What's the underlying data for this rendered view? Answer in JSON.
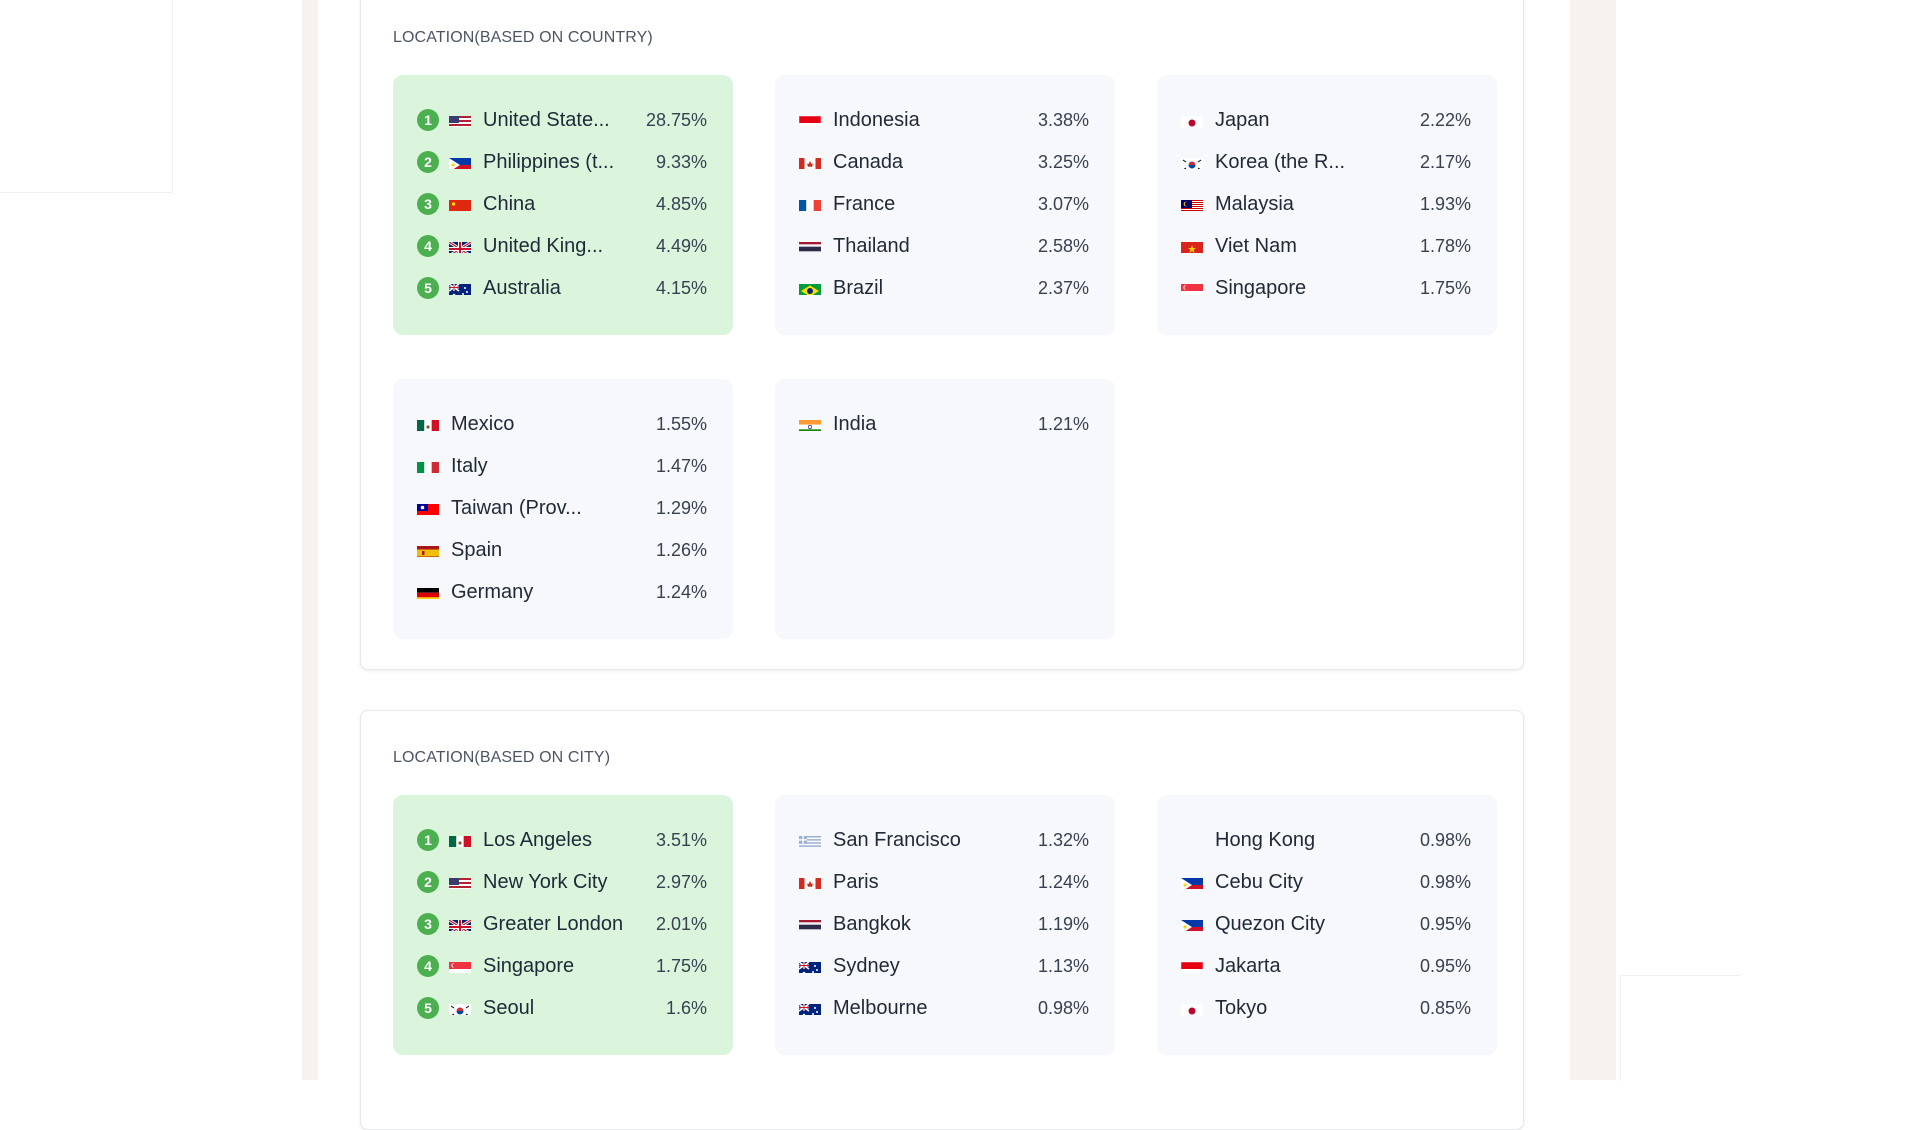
{
  "country_section": {
    "title": "LOCATION(BASED ON COUNTRY)",
    "groups": [
      {
        "highlight": true,
        "items": [
          {
            "rank": "1",
            "flag": "us-flag",
            "name": "United State...",
            "pct": "28.75%"
          },
          {
            "rank": "2",
            "flag": "ph-flag",
            "name": "Philippines (t...",
            "pct": "9.33%"
          },
          {
            "rank": "3",
            "flag": "cn-flag",
            "name": "China",
            "pct": "4.85%"
          },
          {
            "rank": "4",
            "flag": "gb-flag",
            "name": "United King...",
            "pct": "4.49%"
          },
          {
            "rank": "5",
            "flag": "au-flag",
            "name": "Australia",
            "pct": "4.15%"
          }
        ]
      },
      {
        "highlight": false,
        "items": [
          {
            "flag": "id-flag",
            "name": "Indonesia",
            "pct": "3.38%"
          },
          {
            "flag": "ca-flag",
            "name": "Canada",
            "pct": "3.25%"
          },
          {
            "flag": "fr-flag",
            "name": "France",
            "pct": "3.07%"
          },
          {
            "flag": "th-flag",
            "name": "Thailand",
            "pct": "2.58%"
          },
          {
            "flag": "br-flag",
            "name": "Brazil",
            "pct": "2.37%"
          }
        ]
      },
      {
        "highlight": false,
        "items": [
          {
            "flag": "jp-flag",
            "name": "Japan",
            "pct": "2.22%"
          },
          {
            "flag": "kr-flag",
            "name": "Korea (the R...",
            "pct": "2.17%"
          },
          {
            "flag": "my-flag",
            "name": "Malaysia",
            "pct": "1.93%"
          },
          {
            "flag": "vn-flag",
            "name": "Viet Nam",
            "pct": "1.78%"
          },
          {
            "flag": "sg-flag",
            "name": "Singapore",
            "pct": "1.75%"
          }
        ]
      },
      {
        "highlight": false,
        "items": [
          {
            "flag": "mx-flag",
            "name": "Mexico",
            "pct": "1.55%"
          },
          {
            "flag": "it-flag",
            "name": "Italy",
            "pct": "1.47%"
          },
          {
            "flag": "tw-flag",
            "name": "Taiwan (Prov...",
            "pct": "1.29%"
          },
          {
            "flag": "es-flag",
            "name": "Spain",
            "pct": "1.26%"
          },
          {
            "flag": "de-flag",
            "name": "Germany",
            "pct": "1.24%"
          }
        ]
      },
      {
        "highlight": false,
        "items": [
          {
            "flag": "in-flag",
            "name": "India",
            "pct": "1.21%"
          }
        ]
      }
    ]
  },
  "city_section": {
    "title": "LOCATION(BASED ON CITY)",
    "groups": [
      {
        "highlight": true,
        "items": [
          {
            "rank": "1",
            "flag": "mx-flag",
            "name": "Los Angeles",
            "pct": "3.51%"
          },
          {
            "rank": "2",
            "flag": "us-flag",
            "name": "New York City",
            "pct": "2.97%"
          },
          {
            "rank": "3",
            "flag": "gb-flag",
            "name": "Greater London",
            "pct": "2.01%"
          },
          {
            "rank": "4",
            "flag": "sg-flag",
            "name": "Singapore",
            "pct": "1.75%"
          },
          {
            "rank": "5",
            "flag": "kr-flag",
            "name": "Seoul",
            "pct": "1.6%"
          }
        ]
      },
      {
        "highlight": false,
        "items": [
          {
            "flag": "gr-flag",
            "name": "San Francisco",
            "pct": "1.32%"
          },
          {
            "flag": "ca-flag",
            "name": "Paris",
            "pct": "1.24%"
          },
          {
            "flag": "th-flag",
            "name": "Bangkok",
            "pct": "1.19%"
          },
          {
            "flag": "au-flag",
            "name": "Sydney",
            "pct": "1.13%"
          },
          {
            "flag": "au-flag",
            "name": "Melbourne",
            "pct": "0.98%"
          }
        ]
      },
      {
        "highlight": false,
        "items": [
          {
            "flag": "none",
            "name": "Hong Kong",
            "pct": "0.98%"
          },
          {
            "flag": "ph-flag",
            "name": "Cebu City",
            "pct": "0.98%"
          },
          {
            "flag": "ph-flag",
            "name": "Quezon City",
            "pct": "0.95%"
          },
          {
            "flag": "id-flag",
            "name": "Jakarta",
            "pct": "0.95%"
          },
          {
            "flag": "jp-flag",
            "name": "Tokyo",
            "pct": "0.85%"
          }
        ]
      }
    ]
  },
  "colors": {
    "highlight_bg": "#dbf5dd",
    "box_bg": "#f6f8fb",
    "rank_badge": "#4caf50"
  }
}
